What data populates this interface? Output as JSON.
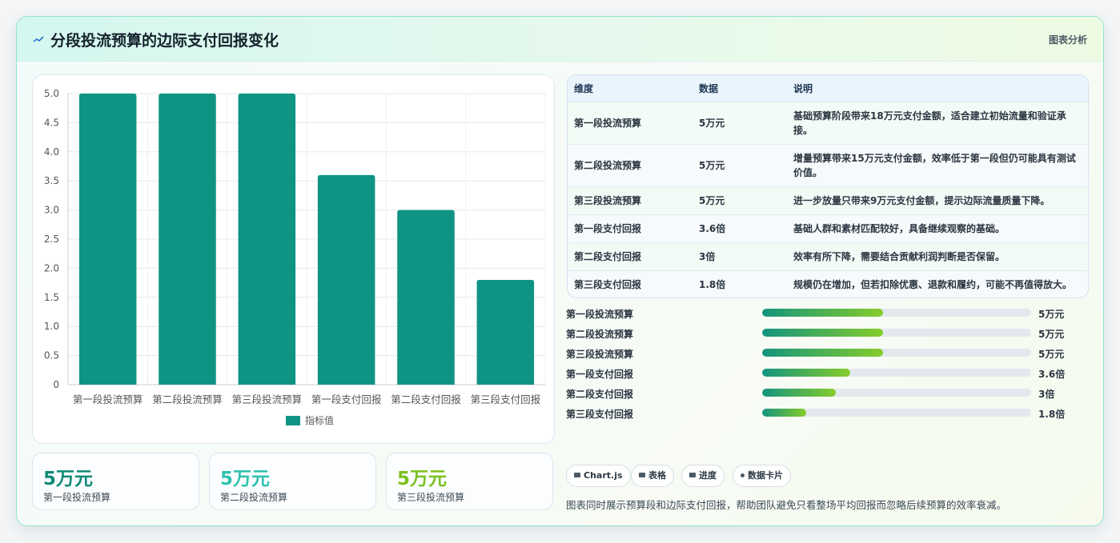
{
  "header": {
    "title": "分段投流预算的边际支付回报变化",
    "right_label": "图表分析"
  },
  "chart_data": {
    "type": "bar",
    "categories": [
      "第一段投流预算",
      "第二段投流预算",
      "第三段投流预算",
      "第一段支付回报",
      "第二段支付回报",
      "第三段支付回报"
    ],
    "series": [
      {
        "name": "指标值",
        "values": [
          5,
          5,
          5,
          3.6,
          3,
          1.8
        ],
        "color": "#0f9484"
      }
    ],
    "ylim": [
      0,
      5
    ],
    "yticks": [
      "0",
      "0.5",
      "1.0",
      "1.5",
      "2.0",
      "2.5",
      "3.0",
      "3.5",
      "4.0",
      "4.5",
      "5.0"
    ],
    "grid": true,
    "legend": "bottom"
  },
  "kpis": [
    {
      "value": "5万元",
      "label": "第一段投流预算",
      "color": "#0f8a77"
    },
    {
      "value": "5万元",
      "label": "第二段投流预算",
      "color": "#2dc2ae"
    },
    {
      "value": "5万元",
      "label": "第三段投流预算",
      "color": "#7cc11f"
    }
  ],
  "table": {
    "headers": [
      "维度",
      "数据",
      "说明"
    ],
    "rows": [
      {
        "dim": "第一段投流预算",
        "data": "5万元",
        "desc": "基础预算阶段带来18万元支付金额，适合建立初始流量和验证承接。"
      },
      {
        "dim": "第二段投流预算",
        "data": "5万元",
        "desc": "增量预算带来15万元支付金额，效率低于第一段但仍可能具有测试价值。"
      },
      {
        "dim": "第三段投流预算",
        "data": "5万元",
        "desc": "进一步放量只带来9万元支付金额，提示边际流量质量下降。"
      },
      {
        "dim": "第一段支付回报",
        "data": "3.6倍",
        "desc": "基础人群和素材匹配较好，具备继续观察的基础。"
      },
      {
        "dim": "第二段支付回报",
        "data": "3倍",
        "desc": "效率有所下降，需要结合贡献利润判断是否保留。"
      },
      {
        "dim": "第三段支付回报",
        "data": "1.8倍",
        "desc": "规模仍在增加，但若扣除优惠、退款和履约，可能不再值得放大。"
      }
    ]
  },
  "progress": [
    {
      "label": "第一段投流预算",
      "value": "5万元",
      "fraction": 0.45
    },
    {
      "label": "第二段投流预算",
      "value": "5万元",
      "fraction": 0.45
    },
    {
      "label": "第三段投流预算",
      "value": "5万元",
      "fraction": 0.45
    },
    {
      "label": "第一段支付回报",
      "value": "3.6倍",
      "fraction": 0.327
    },
    {
      "label": "第二段支付回报",
      "value": "3倍",
      "fraction": 0.273
    },
    {
      "label": "第三段支付回报",
      "value": "1.8倍",
      "fraction": 0.164
    }
  ],
  "chips": [
    {
      "label": "Chart.js",
      "icon": "chart-icon"
    },
    {
      "label": "表格",
      "icon": "table-icon"
    },
    {
      "label": "进度",
      "icon": "progress-icon"
    },
    {
      "label": "数据卡片",
      "icon": "sparkle-icon"
    }
  ],
  "footnote": "图表同时展示预算段和边际支付回报，帮助团队避免只看整场平均回报而忽略后续预算的效率衰减。"
}
